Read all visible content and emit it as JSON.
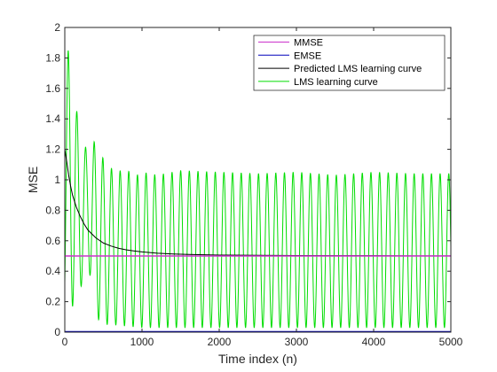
{
  "chart_data": {
    "type": "line",
    "title": "",
    "xlabel": "Time index (n)",
    "ylabel": "MSE",
    "xlim": [
      0,
      5000
    ],
    "ylim": [
      0,
      2
    ],
    "xticks": [
      0,
      1000,
      2000,
      3000,
      4000,
      5000
    ],
    "yticks": [
      0,
      0.2,
      0.4,
      0.6,
      0.8,
      1,
      1.2,
      1.4,
      1.6,
      1.8,
      2
    ],
    "xtick_labels": [
      "0",
      "1000",
      "2000",
      "3000",
      "4000",
      "5000"
    ],
    "ytick_labels": [
      "0",
      "0.2",
      "0.4",
      "0.6",
      "0.8",
      "1",
      "1.2",
      "1.4",
      "1.6",
      "1.8",
      "2"
    ],
    "grid": false,
    "legend_position": "top-right",
    "series": [
      {
        "name": "MMSE",
        "color": "#cc33cc",
        "kind": "constant",
        "value": 0.5
      },
      {
        "name": "EMSE",
        "color": "#0000bb",
        "kind": "constant",
        "value": 0.003
      },
      {
        "name": "Predicted LMS learning curve",
        "color": "#000000",
        "kind": "points",
        "x": [
          0,
          25,
          50,
          75,
          100,
          150,
          200,
          250,
          300,
          400,
          500,
          600,
          700,
          800,
          900,
          1000,
          1200,
          1400,
          1600,
          1800,
          2000,
          2500,
          3000,
          3500,
          4000,
          4500,
          5000
        ],
        "y": [
          1.2,
          1.12,
          1.03,
          0.96,
          0.9,
          0.82,
          0.76,
          0.71,
          0.67,
          0.62,
          0.585,
          0.565,
          0.55,
          0.54,
          0.533,
          0.527,
          0.518,
          0.513,
          0.51,
          0.508,
          0.506,
          0.504,
          0.503,
          0.502,
          0.502,
          0.501,
          0.501
        ]
      },
      {
        "name": "LMS learning curve",
        "color": "#00dd00",
        "kind": "oscillation",
        "period": 112,
        "peaks": [
          {
            "x": 45,
            "y": 1.85
          },
          {
            "x": 225,
            "y": 1.2
          },
          {
            "x": 380,
            "y": 1.25
          },
          {
            "x": 520,
            "y": 1.12
          },
          {
            "x": 650,
            "y": 1.05
          },
          {
            "x": 800,
            "y": 1.07
          },
          {
            "x": 900,
            "y": 1.02
          },
          {
            "x": 1000,
            "y": 1.05
          },
          {
            "x": 1200,
            "y": 1.03
          },
          {
            "x": 1500,
            "y": 1.06
          },
          {
            "x": 2000,
            "y": 1.05
          },
          {
            "x": 2500,
            "y": 1.04
          },
          {
            "x": 3000,
            "y": 1.05
          },
          {
            "x": 3500,
            "y": 1.03
          },
          {
            "x": 4000,
            "y": 1.05
          },
          {
            "x": 4500,
            "y": 1.04
          },
          {
            "x": 5000,
            "y": 1.04
          }
        ],
        "troughs": [
          {
            "x": 130,
            "y": 0.17
          },
          {
            "x": 300,
            "y": 0.44
          },
          {
            "x": 450,
            "y": 0.05
          },
          {
            "x": 600,
            "y": 0.05
          },
          {
            "x": 1000,
            "y": 0.03
          },
          {
            "x": 2000,
            "y": 0.03
          },
          {
            "x": 3000,
            "y": 0.03
          },
          {
            "x": 4000,
            "y": 0.03
          },
          {
            "x": 5000,
            "y": 0.03
          }
        ]
      }
    ]
  }
}
